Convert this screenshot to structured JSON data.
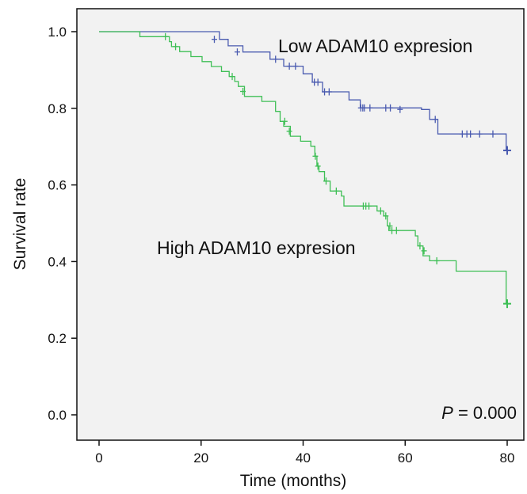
{
  "chart_data": {
    "type": "line",
    "subtype": "kaplan-meier",
    "xlabel": "Time (months)",
    "ylabel": "Survival rate",
    "xlim": [
      0,
      80
    ],
    "ylim": [
      0.0,
      1.0
    ],
    "x_ticks": [
      0,
      20,
      40,
      60,
      80
    ],
    "y_ticks": [
      "0.0",
      "0.2",
      "0.4",
      "0.6",
      "0.8",
      "1.0"
    ],
    "grid": false,
    "annotation": {
      "p_italic": "P",
      "p_rest": " = 0.000"
    },
    "series": [
      {
        "name": "Low ADAM10 expresion",
        "color": "#4a5bb0",
        "steps": [
          [
            0,
            1.0
          ],
          [
            22.5,
            1.0
          ],
          [
            23.6,
            0.98
          ],
          [
            25.3,
            0.963
          ],
          [
            28.2,
            0.947
          ],
          [
            33.5,
            0.928
          ],
          [
            36.2,
            0.91
          ],
          [
            40,
            0.89
          ],
          [
            41.8,
            0.868
          ],
          [
            43.8,
            0.843
          ],
          [
            49,
            0.822
          ],
          [
            51.2,
            0.801
          ],
          [
            60.5,
            0.801
          ],
          [
            63.2,
            0.797
          ],
          [
            64.8,
            0.771
          ],
          [
            66.4,
            0.733
          ],
          [
            79.8,
            0.69
          ],
          [
            80,
            0.69
          ]
        ],
        "censored": [
          [
            22.6,
            0.98
          ],
          [
            27.1,
            0.947
          ],
          [
            34.6,
            0.928
          ],
          [
            37.3,
            0.91
          ],
          [
            38.5,
            0.91
          ],
          [
            42.2,
            0.868
          ],
          [
            42.9,
            0.868
          ],
          [
            44.2,
            0.843
          ],
          [
            45.1,
            0.843
          ],
          [
            51.3,
            0.801
          ],
          [
            51.7,
            0.801
          ],
          [
            52,
            0.801
          ],
          [
            53.1,
            0.801
          ],
          [
            56.2,
            0.801
          ],
          [
            57.1,
            0.801
          ],
          [
            59,
            0.797
          ],
          [
            65.9,
            0.771
          ],
          [
            71.2,
            0.733
          ],
          [
            72.1,
            0.733
          ],
          [
            72.8,
            0.733
          ],
          [
            74.6,
            0.733
          ],
          [
            77.2,
            0.733
          ],
          [
            80,
            0.69
          ]
        ]
      },
      {
        "name": "High ADAM10 expresion",
        "color": "#3fbf56",
        "steps": [
          [
            0,
            1.0
          ],
          [
            8,
            1.0
          ],
          [
            8,
            0.987
          ],
          [
            13.8,
            0.974
          ],
          [
            14.2,
            0.961
          ],
          [
            15.8,
            0.948
          ],
          [
            18,
            0.935
          ],
          [
            20.2,
            0.922
          ],
          [
            22,
            0.909
          ],
          [
            24,
            0.896
          ],
          [
            25.5,
            0.883
          ],
          [
            26.6,
            0.87
          ],
          [
            27.3,
            0.857
          ],
          [
            28.5,
            0.831
          ],
          [
            31.9,
            0.818
          ],
          [
            34.6,
            0.792
          ],
          [
            35.5,
            0.766
          ],
          [
            36.2,
            0.753
          ],
          [
            37.5,
            0.727
          ],
          [
            39.5,
            0.714
          ],
          [
            41.5,
            0.701
          ],
          [
            42.3,
            0.675
          ],
          [
            42.7,
            0.649
          ],
          [
            43.1,
            0.635
          ],
          [
            44.2,
            0.61
          ],
          [
            45.3,
            0.584
          ],
          [
            47.5,
            0.571
          ],
          [
            48,
            0.545
          ],
          [
            54.5,
            0.532
          ],
          [
            55.8,
            0.519
          ],
          [
            56.5,
            0.493
          ],
          [
            56.8,
            0.481
          ],
          [
            62,
            0.467
          ],
          [
            62.5,
            0.441
          ],
          [
            63.5,
            0.415
          ],
          [
            64.8,
            0.402
          ],
          [
            70,
            0.375
          ],
          [
            79.8,
            0.29
          ],
          [
            80,
            0.29
          ]
        ],
        "censored": [
          [
            13,
            0.987
          ],
          [
            15,
            0.961
          ],
          [
            26.1,
            0.883
          ],
          [
            28.2,
            0.844
          ],
          [
            36.4,
            0.766
          ],
          [
            37.3,
            0.74
          ],
          [
            42.4,
            0.675
          ],
          [
            42.9,
            0.649
          ],
          [
            44.5,
            0.61
          ],
          [
            46.5,
            0.584
          ],
          [
            51.8,
            0.545
          ],
          [
            52.3,
            0.545
          ],
          [
            52.9,
            0.545
          ],
          [
            55.2,
            0.532
          ],
          [
            56.2,
            0.519
          ],
          [
            57,
            0.493
          ],
          [
            57.4,
            0.481
          ],
          [
            58.3,
            0.481
          ],
          [
            62.9,
            0.441
          ],
          [
            63.7,
            0.428
          ],
          [
            66.2,
            0.402
          ],
          [
            80,
            0.29
          ]
        ]
      }
    ]
  }
}
